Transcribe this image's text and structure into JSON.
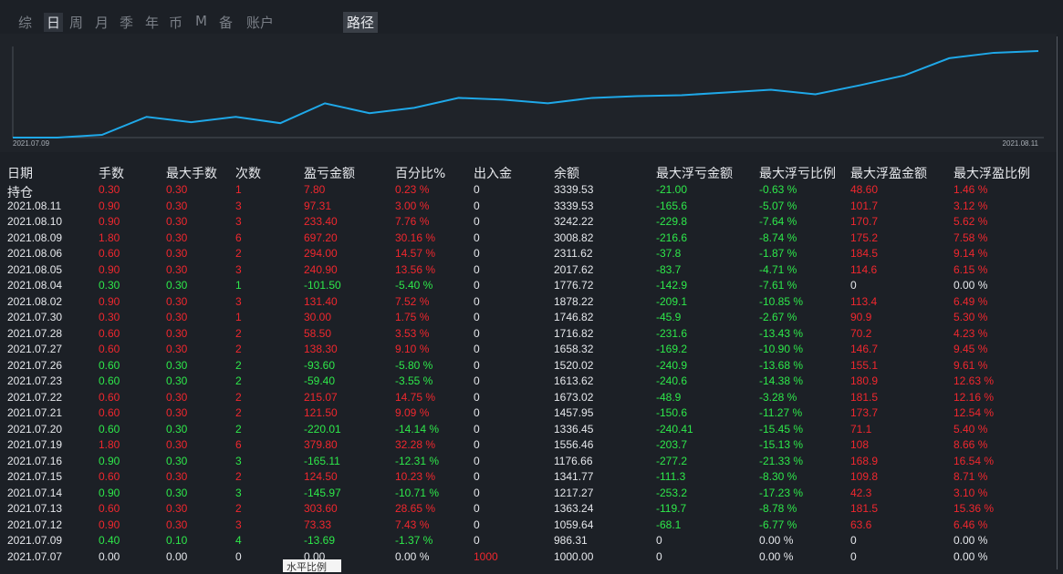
{
  "tabs": [
    "综",
    "日",
    "周",
    "月",
    "季",
    "年",
    "币",
    "M",
    "备",
    "账户"
  ],
  "path_button": "路径",
  "chart_data": {
    "type": "line",
    "x": [
      "2021.07.09",
      null,
      null,
      null,
      null,
      null,
      null,
      null,
      null,
      null,
      null,
      null,
      null,
      null,
      null,
      null,
      null,
      null,
      null,
      null,
      null,
      null,
      null,
      "2021.08.11"
    ],
    "series": [
      {
        "color": "#1fa8e8",
        "values": [
          0,
          0,
          3,
          23,
          17,
          23,
          16,
          38,
          27,
          33,
          44,
          42,
          38,
          44,
          46,
          47,
          50,
          53,
          48,
          58,
          69,
          88,
          94,
          96
        ]
      }
    ],
    "ylim": [
      0,
      100
    ]
  },
  "table": {
    "header": [
      "日期",
      "手数",
      "最大手数",
      "次数",
      "盈亏金额",
      "百分比%",
      "出入金",
      "余额",
      "最大浮亏金额",
      "最大浮亏比例",
      "最大浮盈金额",
      "最大浮盈比例"
    ],
    "rows": [
      [
        "持仓",
        "0.30",
        "0.30",
        "1",
        "7.80",
        "0.23 %",
        "0",
        "3339.53",
        "-21.00",
        "-0.63 %",
        "48.60",
        "1.46 %"
      ],
      [
        "2021.08.11",
        "0.90",
        "0.30",
        "3",
        "97.31",
        "3.00 %",
        "0",
        "3339.53",
        "-165.6",
        "-5.07 %",
        "101.7",
        "3.12 %"
      ],
      [
        "2021.08.10",
        "0.90",
        "0.30",
        "3",
        "233.40",
        "7.76 %",
        "0",
        "3242.22",
        "-229.8",
        "-7.64 %",
        "170.7",
        "5.62 %"
      ],
      [
        "2021.08.09",
        "1.80",
        "0.30",
        "6",
        "697.20",
        "30.16 %",
        "0",
        "3008.82",
        "-216.6",
        "-8.74 %",
        "175.2",
        "7.58 %"
      ],
      [
        "2021.08.06",
        "0.60",
        "0.30",
        "2",
        "294.00",
        "14.57 %",
        "0",
        "2311.62",
        "-37.8",
        "-1.87 %",
        "184.5",
        "9.14 %"
      ],
      [
        "2021.08.05",
        "0.90",
        "0.30",
        "3",
        "240.90",
        "13.56 %",
        "0",
        "2017.62",
        "-83.7",
        "-4.71 %",
        "114.6",
        "6.15 %"
      ],
      [
        "2021.08.04",
        "0.30",
        "0.30",
        "1",
        "-101.50",
        "-5.40 %",
        "0",
        "1776.72",
        "-142.9",
        "-7.61 %",
        "0",
        "0.00 %"
      ],
      [
        "2021.08.02",
        "0.90",
        "0.30",
        "3",
        "131.40",
        "7.52 %",
        "0",
        "1878.22",
        "-209.1",
        "-10.85 %",
        "113.4",
        "6.49 %"
      ],
      [
        "2021.07.30",
        "0.30",
        "0.30",
        "1",
        "30.00",
        "1.75 %",
        "0",
        "1746.82",
        "-45.9",
        "-2.67 %",
        "90.9",
        "5.30 %"
      ],
      [
        "2021.07.28",
        "0.60",
        "0.30",
        "2",
        "58.50",
        "3.53 %",
        "0",
        "1716.82",
        "-231.6",
        "-13.43 %",
        "70.2",
        "4.23 %"
      ],
      [
        "2021.07.27",
        "0.60",
        "0.30",
        "2",
        "138.30",
        "9.10 %",
        "0",
        "1658.32",
        "-169.2",
        "-10.90 %",
        "146.7",
        "9.45 %"
      ],
      [
        "2021.07.26",
        "0.60",
        "0.30",
        "2",
        "-93.60",
        "-5.80 %",
        "0",
        "1520.02",
        "-240.9",
        "-13.68 %",
        "155.1",
        "9.61 %"
      ],
      [
        "2021.07.23",
        "0.60",
        "0.30",
        "2",
        "-59.40",
        "-3.55 %",
        "0",
        "1613.62",
        "-240.6",
        "-14.38 %",
        "180.9",
        "12.63 %"
      ],
      [
        "2021.07.22",
        "0.60",
        "0.30",
        "2",
        "215.07",
        "14.75 %",
        "0",
        "1673.02",
        "-48.9",
        "-3.28 %",
        "181.5",
        "12.16 %"
      ],
      [
        "2021.07.21",
        "0.60",
        "0.30",
        "2",
        "121.50",
        "9.09 %",
        "0",
        "1457.95",
        "-150.6",
        "-11.27 %",
        "173.7",
        "12.54 %"
      ],
      [
        "2021.07.20",
        "0.60",
        "0.30",
        "2",
        "-220.01",
        "-14.14 %",
        "0",
        "1336.45",
        "-240.41",
        "-15.45 %",
        "71.1",
        "5.40 %"
      ],
      [
        "2021.07.19",
        "1.80",
        "0.30",
        "6",
        "379.80",
        "32.28 %",
        "0",
        "1556.46",
        "-203.7",
        "-15.13 %",
        "108",
        "8.66 %"
      ],
      [
        "2021.07.16",
        "0.90",
        "0.30",
        "3",
        "-165.11",
        "-12.31 %",
        "0",
        "1176.66",
        "-277.2",
        "-21.33 %",
        "168.9",
        "16.54 %"
      ],
      [
        "2021.07.15",
        "0.60",
        "0.30",
        "2",
        "124.50",
        "10.23 %",
        "0",
        "1341.77",
        "-111.3",
        "-8.30 %",
        "109.8",
        "8.71 %"
      ],
      [
        "2021.07.14",
        "0.90",
        "0.30",
        "3",
        "-145.97",
        "-10.71 %",
        "0",
        "1217.27",
        "-253.2",
        "-17.23 %",
        "42.3",
        "3.10 %"
      ],
      [
        "2021.07.13",
        "0.60",
        "0.30",
        "2",
        "303.60",
        "28.65 %",
        "0",
        "1363.24",
        "-119.7",
        "-8.78 %",
        "181.5",
        "15.36 %"
      ],
      [
        "2021.07.12",
        "0.90",
        "0.30",
        "3",
        "73.33",
        "7.43 %",
        "0",
        "1059.64",
        "-68.1",
        "-6.77 %",
        "63.6",
        "6.46 %"
      ],
      [
        "2021.07.09",
        "0.40",
        "0.10",
        "4",
        "-13.69",
        "-1.37 %",
        "0",
        "986.31",
        "0",
        "0.00 %",
        "0",
        "0.00 %"
      ],
      [
        "2021.07.07",
        "0.00",
        "0.00",
        "0",
        "0.00",
        "0.00 %",
        "1000",
        "1000.00",
        "0",
        "0.00 %",
        "0",
        "0.00 %"
      ]
    ]
  },
  "tooltip": "水平比例"
}
